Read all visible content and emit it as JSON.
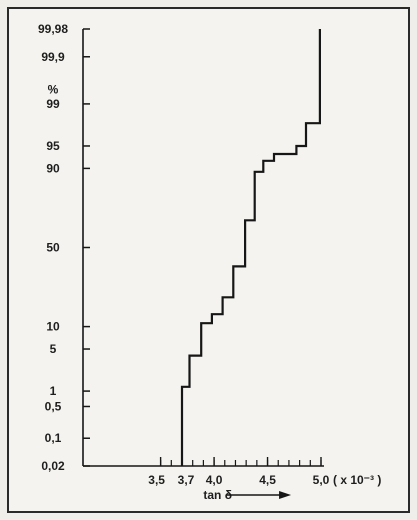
{
  "chart_data": {
    "type": "line",
    "step": true,
    "x_axis": {
      "label": "tan δ",
      "unit_label": "( x 10⁻³ )",
      "ticks": [
        {
          "value": 3.5,
          "label": "3,5"
        },
        {
          "value": 3.7,
          "label": "3,7"
        },
        {
          "value": 4.0,
          "label": "4,0"
        },
        {
          "value": 4.5,
          "label": "4,5"
        },
        {
          "value": 5.0,
          "label": "5,0"
        }
      ],
      "minor_ticks": [
        3.5,
        3.6,
        3.7,
        3.8,
        3.9,
        4.0,
        4.1,
        4.2,
        4.3,
        4.4,
        4.5,
        4.6,
        4.7,
        4.8,
        4.9,
        5.0
      ],
      "range": [
        3.7,
        5.0
      ],
      "arrow": true
    },
    "y_axis": {
      "unit_label": "%",
      "scale": "normal-probability",
      "ticks": [
        {
          "value": 0.02,
          "label": "0,02"
        },
        {
          "value": 0.1,
          "label": "0,1"
        },
        {
          "value": 0.5,
          "label": "0,5"
        },
        {
          "value": 1,
          "label": "1"
        },
        {
          "value": 5,
          "label": "5"
        },
        {
          "value": 10,
          "label": "10"
        },
        {
          "value": 50,
          "label": "50"
        },
        {
          "value": 90,
          "label": "90"
        },
        {
          "value": 95,
          "label": "95"
        },
        {
          "value": 99,
          "label": "99"
        },
        {
          "value": 99.9,
          "label": "99,9"
        },
        {
          "value": 99.98,
          "label": "99,98"
        }
      ],
      "range": [
        0.02,
        99.98
      ]
    },
    "series": [
      {
        "points": [
          [
            3.7,
            0.02
          ],
          [
            3.7,
            1.2
          ],
          [
            3.77,
            1.2
          ],
          [
            3.77,
            4.0
          ],
          [
            3.88,
            4.0
          ],
          [
            3.88,
            11
          ],
          [
            3.98,
            11
          ],
          [
            3.98,
            14
          ],
          [
            4.08,
            14
          ],
          [
            4.08,
            21
          ],
          [
            4.18,
            21
          ],
          [
            4.18,
            38
          ],
          [
            4.29,
            38
          ],
          [
            4.29,
            67
          ],
          [
            4.38,
            67
          ],
          [
            4.38,
            89
          ],
          [
            4.46,
            89
          ],
          [
            4.46,
            92
          ],
          [
            4.56,
            92
          ],
          [
            4.56,
            93.5
          ],
          [
            4.77,
            93.5
          ],
          [
            4.77,
            95
          ],
          [
            4.86,
            95
          ],
          [
            4.86,
            97.8
          ],
          [
            4.99,
            97.8
          ],
          [
            4.99,
            99.98
          ]
        ]
      }
    ],
    "grid": false,
    "line_color": "#161616"
  }
}
